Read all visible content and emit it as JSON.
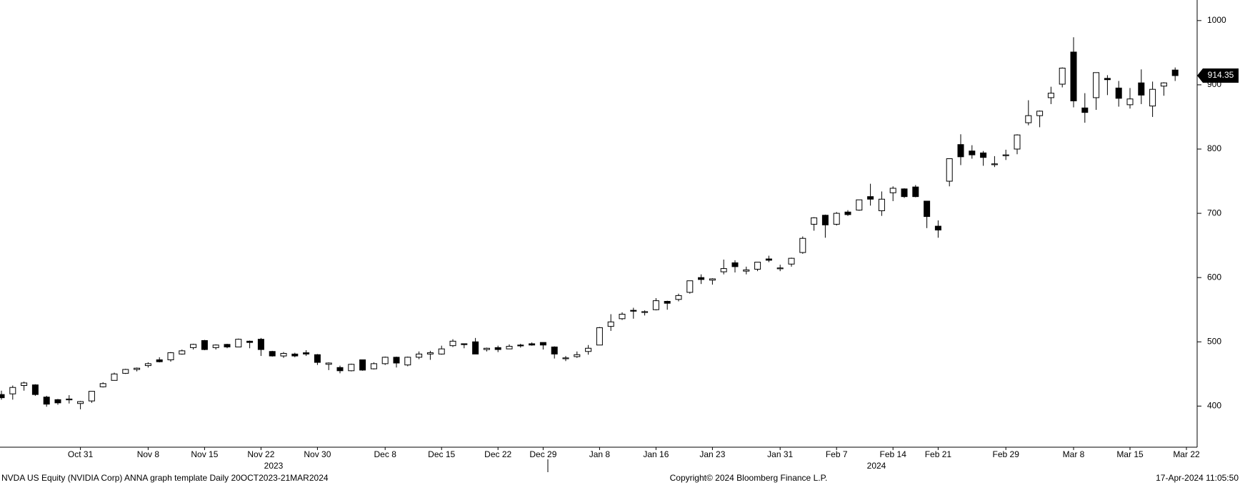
{
  "chart_data": {
    "type": "candlestick",
    "xticks": [
      {
        "value": 7,
        "label": "Oct 31"
      },
      {
        "value": 13,
        "label": "Nov 8"
      },
      {
        "value": 18,
        "label": "Nov 15"
      },
      {
        "value": 23,
        "label": "Nov 22"
      },
      {
        "value": 28,
        "label": "Nov 30"
      },
      {
        "value": 34,
        "label": "Dec 8"
      },
      {
        "value": 39,
        "label": "Dec 15"
      },
      {
        "value": 44,
        "label": "Dec 22"
      },
      {
        "value": 48,
        "label": "Dec 29"
      },
      {
        "value": 53,
        "label": "Jan 8"
      },
      {
        "value": 58,
        "label": "Jan 16"
      },
      {
        "value": 63,
        "label": "Jan 23"
      },
      {
        "value": 69,
        "label": "Jan 31"
      },
      {
        "value": 74,
        "label": "Feb 7"
      },
      {
        "value": 79,
        "label": "Feb 14"
      },
      {
        "value": 83,
        "label": "Feb 21"
      },
      {
        "value": 89,
        "label": "Feb 29"
      },
      {
        "value": 95,
        "label": "Mar 8"
      },
      {
        "value": 100,
        "label": "Mar 15"
      },
      {
        "value": 105,
        "label": "Mar 22"
      }
    ],
    "xlim": [
      0,
      105
    ],
    "year_labels": [
      "2023",
      "2024"
    ],
    "ylim": [
      336,
      1032
    ],
    "yticks": [
      400,
      500,
      600,
      700,
      800,
      900,
      1000
    ],
    "up_color": "#ffffff",
    "down_color": "#000000",
    "open": [
      418,
      419,
      432,
      433,
      414,
      410,
      410,
      404,
      408,
      430,
      440,
      451,
      457,
      463,
      472,
      472,
      481,
      491,
      502,
      491,
      496,
      492,
      501,
      504,
      485,
      478,
      481,
      483,
      480,
      465,
      460,
      455,
      472,
      458,
      466,
      476,
      464,
      476,
      481,
      481,
      494,
      497,
      500,
      488,
      491,
      489,
      495,
      497,
      499,
      492,
      474,
      477,
      485,
      495,
      524,
      536,
      549,
      546,
      550,
      563,
      566,
      577,
      600,
      596,
      609,
      623,
      610,
      613,
      629,
      614,
      621,
      639,
      683,
      697,
      683,
      702,
      705,
      726,
      704,
      732,
      738,
      741,
      719,
      680,
      750,
      807,
      797,
      794,
      776,
      790,
      800,
      841,
      852,
      880,
      901,
      951,
      864,
      880,
      910,
      895,
      869,
      903,
      867,
      898,
      923
    ],
    "high": [
      424,
      432,
      438,
      434,
      416,
      411,
      417,
      408,
      423,
      437,
      452,
      458,
      460,
      468,
      476,
      484,
      488,
      497,
      503,
      496,
      497,
      505,
      502,
      506,
      486,
      484,
      483,
      487,
      481,
      468,
      463,
      466,
      472,
      468,
      477,
      477,
      477,
      485,
      486,
      494,
      504,
      497,
      506,
      491,
      494,
      496,
      497,
      499,
      499,
      493,
      478,
      485,
      495,
      523,
      543,
      546,
      553,
      549,
      568,
      564,
      575,
      595,
      605,
      599,
      628,
      627,
      617,
      624,
      634,
      620,
      631,
      664,
      694,
      698,
      702,
      705,
      721,
      746,
      734,
      742,
      739,
      744,
      719,
      689,
      785,
      823,
      806,
      797,
      789,
      799,
      823,
      876,
      860,
      897,
      927,
      974,
      887,
      919,
      915,
      906,
      895,
      924,
      905,
      904,
      927
    ],
    "low": [
      410,
      410,
      424,
      416,
      399,
      402,
      404,
      395,
      405,
      429,
      440,
      450,
      454,
      460,
      468,
      469,
      480,
      488,
      487,
      488,
      490,
      492,
      490,
      478,
      477,
      475,
      476,
      478,
      464,
      456,
      451,
      454,
      455,
      457,
      464,
      460,
      462,
      473,
      472,
      480,
      492,
      490,
      481,
      485,
      484,
      489,
      491,
      494,
      488,
      474,
      470,
      475,
      480,
      495,
      517,
      534,
      536,
      541,
      549,
      550,
      563,
      575,
      590,
      589,
      605,
      608,
      605,
      610,
      624,
      610,
      617,
      637,
      673,
      662,
      681,
      696,
      704,
      712,
      696,
      719,
      724,
      725,
      677,
      662,
      742,
      775,
      785,
      774,
      772,
      783,
      792,
      837,
      834,
      870,
      896,
      865,
      841,
      861,
      884,
      866,
      863,
      870,
      850,
      883,
      906
    ],
    "close": [
      413,
      429,
      436,
      418,
      403,
      405,
      411,
      407,
      423,
      435,
      450,
      457,
      459,
      466,
      469,
      483,
      486,
      496,
      488,
      495,
      492,
      504,
      499,
      488,
      478,
      482,
      478,
      481,
      468,
      467,
      455,
      465,
      456,
      466,
      476,
      467,
      476,
      481,
      483,
      489,
      501,
      496,
      481,
      490,
      488,
      493,
      494,
      495,
      495,
      481,
      475,
      480,
      490,
      522,
      531,
      543,
      548,
      547,
      564,
      560,
      572,
      595,
      597,
      598,
      614,
      617,
      612,
      624,
      627,
      615,
      630,
      661,
      693,
      682,
      700,
      698,
      721,
      722,
      722,
      739,
      726,
      726,
      695,
      674,
      785,
      788,
      791,
      787,
      777,
      791,
      822,
      852,
      859,
      887,
      926,
      875,
      857,
      919,
      908,
      879,
      878,
      884,
      893,
      903,
      914.35
    ],
    "source_note": "NVDA US Equity (NVIDIA Corp) ANNA  graph template  Daily 20OCT2023-21MAR2024",
    "copyright": "Copyright© 2024 Bloomberg Finance L.P.",
    "timestamp": "17-Apr-2024 11:05:50"
  }
}
